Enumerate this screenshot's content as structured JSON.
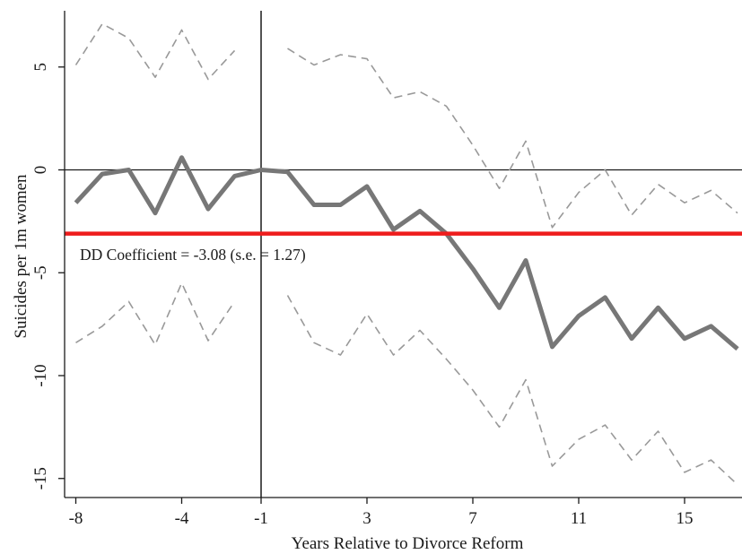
{
  "chart_data": {
    "type": "line",
    "title": "",
    "xlabel": "Years Relative to Divorce Reform",
    "ylabel": "Suicides per 1m women",
    "xlim": [
      -8,
      17
    ],
    "ylim": [
      -15.5,
      7.8
    ],
    "x_ticks": [
      -8,
      -4,
      -1,
      3,
      7,
      11,
      15
    ],
    "y_ticks": [
      5,
      0,
      -5,
      -10,
      -15
    ],
    "grid": false,
    "legend": "none",
    "reference_lines": {
      "horizontal": 0,
      "vertical": -1
    },
    "dd_line": {
      "y": -3.1,
      "color": "#ee1c1c"
    },
    "annotation": "DD Coefficient = -3.08 (s.e. = 1.27)",
    "series": [
      {
        "role": "estimate",
        "style": "solid",
        "color": "#777777",
        "x": [
          -8,
          -7,
          -6,
          -5,
          -4,
          -3,
          -2,
          -1,
          0,
          1,
          2,
          3,
          4,
          5,
          6,
          7,
          8,
          9,
          10,
          11,
          12,
          13,
          14,
          15,
          16,
          17
        ],
        "y": [
          -1.6,
          -0.2,
          0.0,
          -2.1,
          0.6,
          -1.9,
          -0.3,
          0.0,
          -0.1,
          -1.7,
          -1.7,
          -0.8,
          -2.9,
          -2.0,
          -3.1,
          -4.8,
          -6.7,
          -4.4,
          -8.6,
          -7.1,
          -6.2,
          -8.2,
          -6.7,
          -8.2,
          -7.6,
          -8.7
        ]
      },
      {
        "role": "upper-ci-pre",
        "style": "dashed",
        "color": "#999999",
        "x": [
          -8,
          -7,
          -6,
          -5,
          -4,
          -3,
          -2
        ],
        "y": [
          5.1,
          7.1,
          6.4,
          4.5,
          6.8,
          4.4,
          5.8
        ]
      },
      {
        "role": "upper-ci-post",
        "style": "dashed",
        "color": "#999999",
        "x": [
          0,
          1,
          2,
          3,
          4,
          5,
          6,
          7,
          8,
          9,
          10,
          11,
          12,
          13,
          14,
          15,
          16,
          17
        ],
        "y": [
          5.9,
          5.1,
          5.6,
          5.4,
          3.5,
          3.8,
          3.1,
          1.2,
          -0.9,
          1.4,
          -2.8,
          -1.1,
          0.0,
          -2.2,
          -0.7,
          -1.6,
          -1.0,
          -2.1
        ]
      },
      {
        "role": "lower-ci-pre",
        "style": "dashed",
        "color": "#999999",
        "x": [
          -8,
          -7,
          -6,
          -5,
          -4,
          -3,
          -2
        ],
        "y": [
          -8.4,
          -7.6,
          -6.4,
          -8.5,
          -5.5,
          -8.3,
          -6.4
        ]
      },
      {
        "role": "lower-ci-post",
        "style": "dashed",
        "color": "#999999",
        "x": [
          0,
          1,
          2,
          3,
          4,
          5,
          6,
          7,
          8,
          9,
          10,
          11,
          12,
          13,
          14,
          15,
          16,
          17
        ],
        "y": [
          -6.1,
          -8.4,
          -9.0,
          -7.0,
          -9.0,
          -7.8,
          -9.2,
          -10.7,
          -12.5,
          -10.2,
          -14.4,
          -13.1,
          -12.4,
          -14.1,
          -12.7,
          -14.7,
          -14.1,
          -15.3
        ]
      }
    ]
  }
}
